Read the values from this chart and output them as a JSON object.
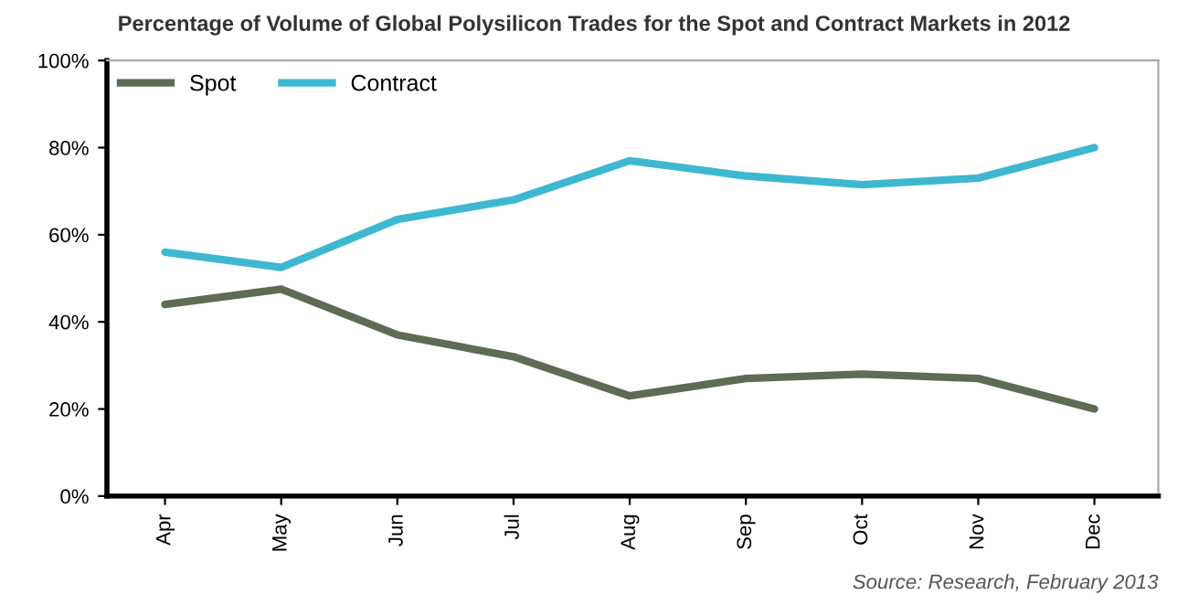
{
  "chart_data": {
    "type": "line",
    "title": "Percentage of Volume of Global Polysilicon Trades for the Spot and Contract Markets in 2012",
    "categories": [
      "Apr",
      "May",
      "Jun",
      "Jul",
      "Aug",
      "Sep",
      "Oct",
      "Nov",
      "Dec"
    ],
    "series": [
      {
        "name": "Spot",
        "color": "#5e6b55",
        "values": [
          44,
          47.5,
          37,
          32,
          23,
          27,
          28,
          27,
          20
        ]
      },
      {
        "name": "Contract",
        "color": "#3db8d0",
        "values": [
          56,
          52.5,
          63.5,
          68,
          77,
          73.5,
          71.5,
          73,
          80
        ]
      }
    ],
    "ylim": [
      0,
      100
    ],
    "yticks": [
      {
        "value": 0,
        "label": "0%"
      },
      {
        "value": 20,
        "label": "20%"
      },
      {
        "value": 40,
        "label": "40%"
      },
      {
        "value": 60,
        "label": "60%"
      },
      {
        "value": 80,
        "label": "80%"
      },
      {
        "value": 100,
        "label": "100%"
      }
    ],
    "grid": false,
    "legend": "top left",
    "marker": "none",
    "line_style": "solid",
    "annotations": [
      "Source: Research, February 2013"
    ]
  }
}
